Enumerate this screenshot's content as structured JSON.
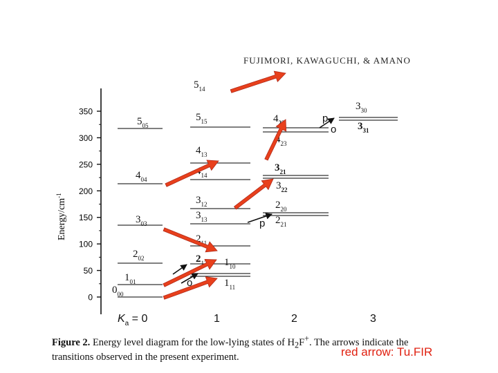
{
  "header": "FUJIMORI, KAWAGUCHI, & AMANO",
  "axis": {
    "ylabel": "Energy/cm",
    "ylabel_sup": "-1",
    "ticks": [
      "350",
      "300",
      "250",
      "200",
      "150",
      "100",
      "50",
      "0"
    ],
    "ka_prefix": "K",
    "ka_sub": "a",
    "ka_suffix": " = 0",
    "ka_values": [
      "1",
      "2",
      "3"
    ]
  },
  "levels": {
    "k0": [
      {
        "main": "5",
        "sub": "05"
      },
      {
        "main": "4",
        "sub": "04"
      },
      {
        "main": "3",
        "sub": "03"
      },
      {
        "main": "2",
        "sub": "02"
      },
      {
        "main": "1",
        "sub": "01"
      },
      {
        "main": "0",
        "sub": "00"
      }
    ],
    "k1": [
      {
        "main": "5",
        "sub": "14"
      },
      {
        "main": "5",
        "sub": "15"
      },
      {
        "main": "4",
        "sub": "13"
      },
      {
        "main": "4",
        "sub": "14"
      },
      {
        "main": "3",
        "sub": "12"
      },
      {
        "main": "3",
        "sub": "13"
      },
      {
        "main": "2",
        "sub": "11"
      },
      {
        "main": "2",
        "sub": "12"
      },
      {
        "main": "1",
        "sub": "10"
      },
      {
        "main": "1",
        "sub": "11"
      }
    ],
    "k2": [
      {
        "main": "4",
        "sub": "22"
      },
      {
        "main": "4",
        "sub": "23"
      },
      {
        "main": "3",
        "sub": "21"
      },
      {
        "main": "3",
        "sub": "22"
      },
      {
        "main": "2",
        "sub": "20"
      },
      {
        "main": "2",
        "sub": "21"
      }
    ],
    "k3": [
      {
        "main": "3",
        "sub": "30"
      },
      {
        "main": "3",
        "sub": "31"
      }
    ]
  },
  "branch_labels": {
    "p": "p",
    "o": "o"
  },
  "caption": {
    "label": "Figure 2.",
    "text_part1": " Energy level diagram for the low-lying states of H",
    "sub1": "2",
    "mid": "F",
    "sup": "+",
    "text_part2": ". The arrows indicate the transitions observed in the present experiment."
  },
  "note": "red arrow: Tu.FIR",
  "colors": {
    "arrow": "#e8401c",
    "arrow_edge": "#b02818",
    "ink": "#111111",
    "note": "#e02010"
  }
}
